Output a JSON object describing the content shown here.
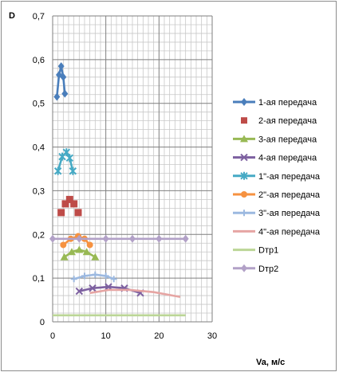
{
  "chart_data": {
    "type": "line",
    "xlabel": "Va, м/с",
    "ylabel": "D",
    "xlim": [
      0,
      30
    ],
    "ylim": [
      0,
      0.7
    ],
    "x_ticks": [
      "0",
      "10",
      "20",
      "30"
    ],
    "y_ticks": [
      "0",
      "0,1",
      "0,2",
      "0,3",
      "0,4",
      "0,5",
      "0,6",
      "0,7"
    ],
    "grid": true,
    "legend_position": "right",
    "series": [
      {
        "name": "1-ая передача",
        "color": "#4a7ebb",
        "marker": "diamond",
        "line": true,
        "points": [
          [
            0.8,
            0.515
          ],
          [
            1.2,
            0.565
          ],
          [
            1.6,
            0.585
          ],
          [
            2.0,
            0.56
          ],
          [
            2.3,
            0.522
          ]
        ]
      },
      {
        "name": "2-ая передача",
        "color": "#be4b48",
        "marker": "square",
        "line": false,
        "points": [
          [
            1.6,
            0.25
          ],
          [
            2.4,
            0.27
          ],
          [
            3.2,
            0.28
          ],
          [
            4.0,
            0.27
          ],
          [
            4.8,
            0.25
          ]
        ]
      },
      {
        "name": "3-ая передача",
        "color": "#98b954",
        "marker": "triangle",
        "line": true,
        "points": [
          [
            2.2,
            0.148
          ],
          [
            3.6,
            0.16
          ],
          [
            5.0,
            0.165
          ],
          [
            6.4,
            0.16
          ],
          [
            8.0,
            0.148
          ]
        ]
      },
      {
        "name": "4-ая передача",
        "color": "#7d60a0",
        "marker": "x",
        "line": true,
        "points": [
          [
            5.0,
            0.07
          ],
          [
            7.5,
            0.077
          ],
          [
            10.5,
            0.08
          ],
          [
            13.5,
            0.077
          ],
          [
            16.5,
            0.066
          ]
        ]
      },
      {
        "name": "1\"-ая передача",
        "color": "#46aac5",
        "marker": "star",
        "line": true,
        "points": [
          [
            1.0,
            0.345
          ],
          [
            1.8,
            0.378
          ],
          [
            2.6,
            0.388
          ],
          [
            3.2,
            0.375
          ],
          [
            3.8,
            0.345
          ]
        ]
      },
      {
        "name": "2\"-ая передача",
        "color": "#f69240",
        "marker": "circle",
        "line": true,
        "points": [
          [
            2.0,
            0.176
          ],
          [
            3.4,
            0.19
          ],
          [
            4.8,
            0.196
          ],
          [
            6.0,
            0.19
          ],
          [
            7.0,
            0.176
          ]
        ]
      },
      {
        "name": "3\"-ая передача",
        "color": "#9cb9e0",
        "marker": "plus",
        "line": true,
        "points": [
          [
            4.0,
            0.098
          ],
          [
            6.0,
            0.105
          ],
          [
            8.0,
            0.108
          ],
          [
            10.0,
            0.105
          ],
          [
            11.5,
            0.098
          ]
        ]
      },
      {
        "name": "4\"-ая передача",
        "color": "#e6a5a3",
        "marker": "dash",
        "line": true,
        "points": [
          [
            7.0,
            0.066
          ],
          [
            10.5,
            0.073
          ],
          [
            14.5,
            0.073
          ],
          [
            19.0,
            0.068
          ],
          [
            24.0,
            0.057
          ]
        ]
      },
      {
        "name": "Dтр1",
        "color": "#bbd696",
        "marker": "dash",
        "line": true,
        "points": [
          [
            0,
            0.015
          ],
          [
            5,
            0.015
          ],
          [
            10,
            0.015
          ],
          [
            15,
            0.015
          ],
          [
            20,
            0.015
          ],
          [
            25,
            0.015
          ]
        ]
      },
      {
        "name": "Dтр2",
        "color": "#b2a1c7",
        "marker": "diamond",
        "line": true,
        "points": [
          [
            0,
            0.19
          ],
          [
            5,
            0.19
          ],
          [
            10,
            0.19
          ],
          [
            15,
            0.19
          ],
          [
            20,
            0.19
          ],
          [
            25,
            0.19
          ]
        ]
      }
    ]
  }
}
